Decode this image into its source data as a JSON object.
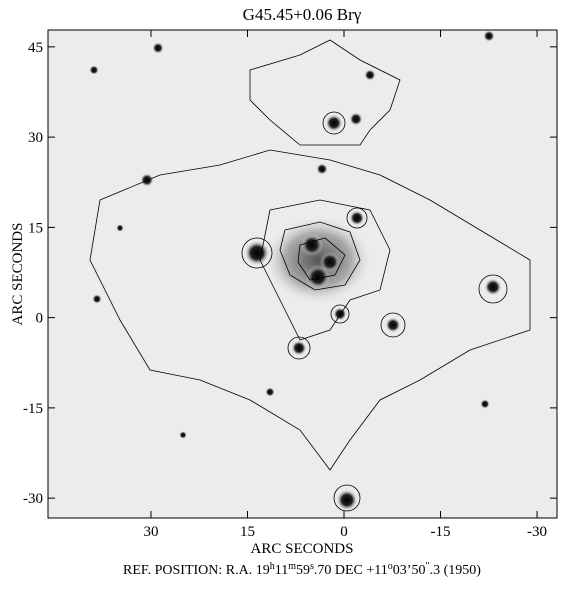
{
  "chart_data": {
    "type": "image",
    "title": "G45.45+0.06 Brγ",
    "xlabel": "ARC SECONDS",
    "ylabel": "ARC SECONDS",
    "note": [
      {
        "text": "REF. POSITION:  R.A. 19"
      },
      {
        "text": "h",
        "sup": true
      },
      {
        "text": "11"
      },
      {
        "text": "m",
        "sup": true
      },
      {
        "text": "59"
      },
      {
        "text": "s",
        "sup": true
      },
      {
        "text": ".70  DEC  +11"
      },
      {
        "text": "o",
        "sup": true
      },
      {
        "text": "03’50"
      },
      {
        "text": "″",
        "sup": true
      },
      {
        "text": ".3  (1950)"
      }
    ],
    "xlim": [
      46,
      -33.1
    ],
    "ylim": [
      -33.3,
      47.8
    ],
    "xticks": [
      30,
      15,
      0,
      -15,
      -30
    ],
    "yticks": [
      45,
      30,
      15,
      0,
      -15,
      -30
    ]
  }
}
